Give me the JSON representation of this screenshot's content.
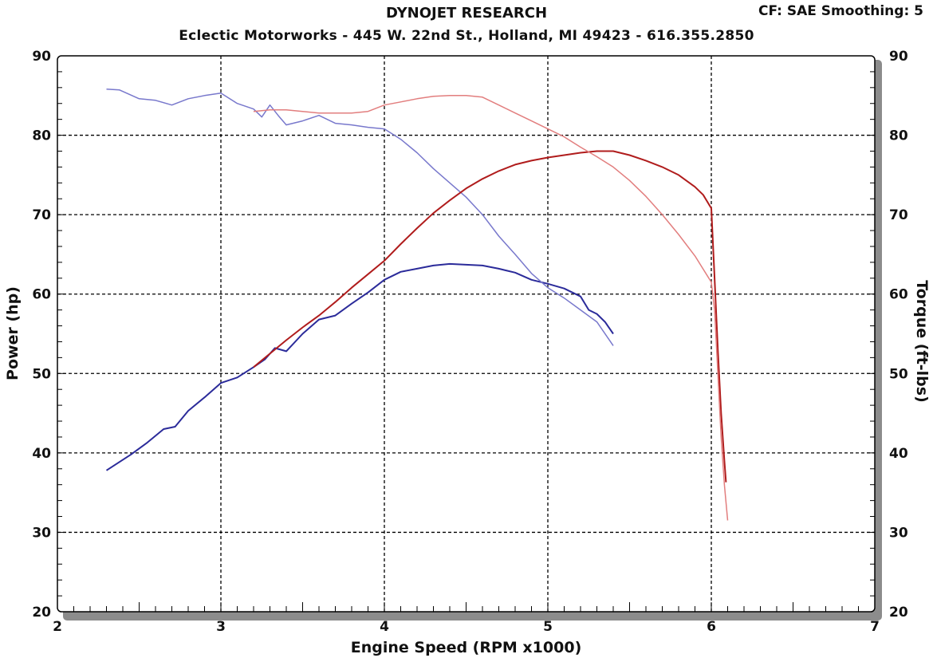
{
  "header": {
    "title": "DYNOJET RESEARCH",
    "subtitle": "Eclectic Motorworks - 445 W. 22nd St., Holland, MI  49423 - 616.355.2850",
    "settings": "CF: SAE  Smoothing: 5"
  },
  "chart_data": {
    "type": "line",
    "title": "DYNOJET RESEARCH",
    "subtitle": "Eclectic Motorworks - 445 W. 22nd St., Holland, MI  49423 - 616.355.2850",
    "xlabel": "Engine Speed (RPM x1000)",
    "ylabel": "Power (hp)",
    "ylabel_right": "Torque (ft-lbs)",
    "xlim": [
      2,
      7
    ],
    "ylim": [
      20,
      90
    ],
    "ylim_right": [
      20,
      90
    ],
    "x_ticks": [
      2,
      3,
      4,
      5,
      6,
      7
    ],
    "y_ticks": [
      20,
      30,
      40,
      50,
      60,
      70,
      80,
      90
    ],
    "grid": true,
    "series": [
      {
        "axis": "left",
        "color": "#2b2b9a",
        "width": 2,
        "x": [
          2.3,
          2.45,
          2.55,
          2.65,
          2.72,
          2.8,
          2.9,
          3.0,
          3.1,
          3.2,
          3.27,
          3.33,
          3.4,
          3.5,
          3.6,
          3.7,
          3.8,
          3.9,
          4.0,
          4.1,
          4.2,
          4.3,
          4.4,
          4.5,
          4.6,
          4.7,
          4.8,
          4.9,
          5.0,
          5.1,
          5.2,
          5.25,
          5.3,
          5.35,
          5.4
        ],
        "y": [
          37.8,
          39.8,
          41.3,
          43.0,
          43.3,
          45.3,
          47.0,
          48.8,
          49.5,
          50.8,
          51.8,
          53.2,
          52.8,
          55.0,
          56.8,
          57.3,
          58.8,
          60.2,
          61.8,
          62.8,
          63.2,
          63.6,
          63.8,
          63.7,
          63.6,
          63.2,
          62.7,
          61.8,
          61.3,
          60.7,
          59.7,
          58.0,
          57.5,
          56.5,
          55.0
        ]
      },
      {
        "axis": "left",
        "color": "#7878cc",
        "width": 1.5,
        "x": [
          2.3,
          2.38,
          2.5,
          2.6,
          2.7,
          2.8,
          2.9,
          3.0,
          3.1,
          3.2,
          3.25,
          3.3,
          3.35,
          3.4,
          3.5,
          3.6,
          3.7,
          3.8,
          3.9,
          4.0,
          4.1,
          4.2,
          4.3,
          4.4,
          4.5,
          4.6,
          4.7,
          4.8,
          4.9,
          5.0,
          5.1,
          5.2,
          5.3,
          5.4
        ],
        "y": [
          85.8,
          85.7,
          84.6,
          84.4,
          83.8,
          84.6,
          85.0,
          85.3,
          84.0,
          83.3,
          82.3,
          83.8,
          82.5,
          81.3,
          81.8,
          82.5,
          81.5,
          81.3,
          81.0,
          80.8,
          79.5,
          77.8,
          75.8,
          74.0,
          72.2,
          70.0,
          67.3,
          65.0,
          62.6,
          60.8,
          59.5,
          58.0,
          56.5,
          53.5
        ]
      },
      {
        "axis": "right",
        "color": "#b01c1c",
        "width": 2,
        "x": [
          3.2,
          3.3,
          3.4,
          3.5,
          3.6,
          3.7,
          3.8,
          3.9,
          4.0,
          4.1,
          4.2,
          4.3,
          4.4,
          4.5,
          4.6,
          4.7,
          4.8,
          4.9,
          5.0,
          5.1,
          5.2,
          5.3,
          5.4,
          5.5,
          5.6,
          5.7,
          5.8,
          5.9,
          5.95,
          6.0,
          6.02,
          6.04,
          6.06,
          6.08,
          6.09
        ],
        "y": [
          50.8,
          52.5,
          54.2,
          55.8,
          57.3,
          59.0,
          60.8,
          62.5,
          64.2,
          66.3,
          68.3,
          70.2,
          71.8,
          73.3,
          74.5,
          75.5,
          76.3,
          76.8,
          77.2,
          77.5,
          77.8,
          78.0,
          78.0,
          77.5,
          76.8,
          76.0,
          75.0,
          73.5,
          72.5,
          70.8,
          62.0,
          53.0,
          45.0,
          39.0,
          36.3
        ]
      },
      {
        "axis": "right",
        "color": "#e27e7e",
        "width": 1.5,
        "x": [
          3.2,
          3.3,
          3.4,
          3.5,
          3.6,
          3.7,
          3.8,
          3.9,
          4.0,
          4.1,
          4.2,
          4.3,
          4.4,
          4.5,
          4.6,
          4.7,
          4.8,
          4.9,
          5.0,
          5.1,
          5.2,
          5.3,
          5.4,
          5.5,
          5.6,
          5.7,
          5.8,
          5.9,
          6.0,
          6.02,
          6.04,
          6.06,
          6.08,
          6.1
        ],
        "y": [
          83.0,
          83.2,
          83.2,
          83.0,
          82.8,
          82.8,
          82.8,
          83.0,
          83.8,
          84.2,
          84.6,
          84.9,
          85.0,
          85.0,
          84.8,
          83.8,
          82.8,
          81.8,
          80.8,
          79.8,
          78.5,
          77.3,
          76.0,
          74.3,
          72.3,
          70.0,
          67.5,
          64.8,
          61.5,
          58.0,
          50.0,
          42.0,
          36.0,
          31.5
        ]
      }
    ]
  }
}
